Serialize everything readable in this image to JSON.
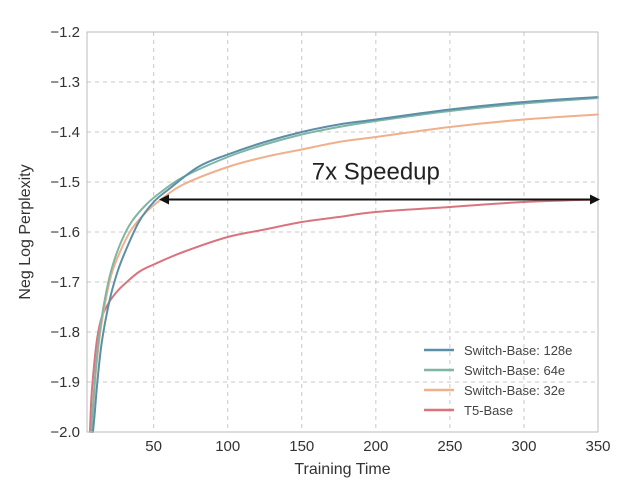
{
  "chart_data": {
    "type": "line",
    "xlabel": "Training Time",
    "ylabel": "Neg Log Perplexity",
    "xlim": [
      5,
      350
    ],
    "ylim": [
      -2.0,
      -1.2
    ],
    "xticks": [
      50,
      100,
      150,
      200,
      250,
      300,
      350
    ],
    "yticks": [
      -2.0,
      -1.9,
      -1.8,
      -1.7,
      -1.6,
      -1.5,
      -1.4,
      -1.3,
      -1.2
    ],
    "xtick_labels": [
      "50",
      "100",
      "150",
      "200",
      "250",
      "300",
      "350"
    ],
    "ytick_labels": [
      "−2.0",
      "−1.9",
      "−1.8",
      "−1.7",
      "−1.6",
      "−1.5",
      "−1.4",
      "−1.3",
      "−1.2"
    ],
    "grid": true,
    "legend_position": "bottom-right",
    "series": [
      {
        "name": "Switch-Base: 128e",
        "color": "#5b8fa8",
        "x": [
          9,
          10,
          12,
          15,
          20,
          25,
          30,
          40,
          50,
          60,
          80,
          100,
          125,
          150,
          175,
          200,
          250,
          300,
          350
        ],
        "y": [
          -2.0,
          -1.97,
          -1.9,
          -1.82,
          -1.74,
          -1.685,
          -1.645,
          -1.58,
          -1.54,
          -1.515,
          -1.47,
          -1.445,
          -1.42,
          -1.4,
          -1.385,
          -1.375,
          -1.355,
          -1.34,
          -1.33
        ]
      },
      {
        "name": "Switch-Base: 64e",
        "color": "#7fb5a3",
        "x": [
          8,
          9,
          11,
          14,
          18,
          22,
          28,
          35,
          45,
          55,
          70,
          100,
          125,
          150,
          175,
          200,
          250,
          300,
          350
        ],
        "y": [
          -2.0,
          -1.95,
          -1.87,
          -1.79,
          -1.72,
          -1.67,
          -1.62,
          -1.58,
          -1.545,
          -1.52,
          -1.49,
          -1.45,
          -1.425,
          -1.405,
          -1.39,
          -1.378,
          -1.358,
          -1.343,
          -1.332
        ]
      },
      {
        "name": "Switch-Base: 32e",
        "color": "#f0b08c",
        "x": [
          8,
          9,
          11,
          14,
          18,
          22,
          28,
          35,
          45,
          55,
          70,
          100,
          125,
          150,
          175,
          200,
          250,
          300,
          350
        ],
        "y": [
          -2.0,
          -1.96,
          -1.88,
          -1.8,
          -1.73,
          -1.68,
          -1.635,
          -1.595,
          -1.56,
          -1.535,
          -1.505,
          -1.47,
          -1.45,
          -1.435,
          -1.42,
          -1.41,
          -1.39,
          -1.375,
          -1.365
        ]
      },
      {
        "name": "T5-Base",
        "color": "#d9747f",
        "x": [
          7,
          8,
          10,
          12,
          15,
          20,
          25,
          30,
          40,
          50,
          70,
          100,
          125,
          150,
          175,
          200,
          250,
          300,
          350
        ],
        "y": [
          -2.0,
          -1.93,
          -1.86,
          -1.81,
          -1.77,
          -1.74,
          -1.72,
          -1.705,
          -1.68,
          -1.665,
          -1.64,
          -1.61,
          -1.595,
          -1.58,
          -1.57,
          -1.56,
          -1.55,
          -1.54,
          -1.535
        ]
      }
    ],
    "annotations": [
      {
        "text": "7x Speedup",
        "arrow_from": {
          "x": 55,
          "y": -1.535
        },
        "arrow_to": {
          "x": 350,
          "y": -1.535
        },
        "label_anchor": {
          "x": 200,
          "y": -1.495
        },
        "color": "#111111"
      }
    ]
  }
}
